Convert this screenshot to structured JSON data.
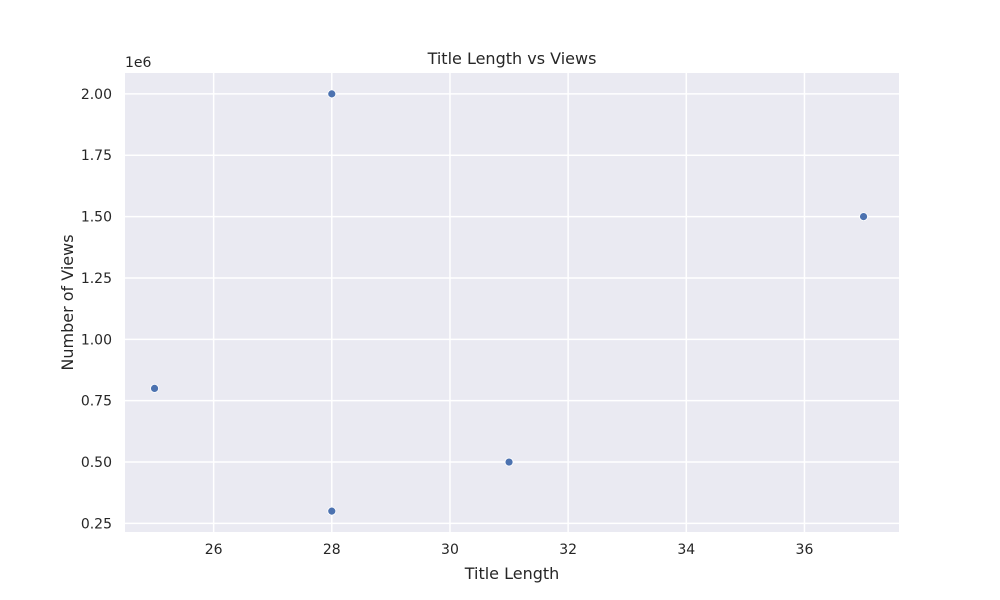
{
  "chart_data": {
    "type": "scatter",
    "title": "Title Length vs Views",
    "xlabel": "Title Length",
    "ylabel": "Number of Views",
    "y_offset_label": "1e6",
    "xlim": [
      24.5,
      37.6
    ],
    "ylim": [
      0.215,
      2.085
    ],
    "x_ticks": [
      26,
      28,
      30,
      32,
      34,
      36
    ],
    "y_ticks": [
      0.25,
      0.5,
      0.75,
      1.0,
      1.25,
      1.5,
      1.75,
      2.0
    ],
    "x_tick_labels": [
      "26",
      "28",
      "30",
      "32",
      "34",
      "36"
    ],
    "y_tick_labels": [
      "0.25",
      "0.50",
      "0.75",
      "1.00",
      "1.25",
      "1.50",
      "1.75",
      "2.00"
    ],
    "grid": true,
    "points": [
      {
        "x": 25,
        "y": 0.8
      },
      {
        "x": 28,
        "y": 2.0
      },
      {
        "x": 28,
        "y": 0.3
      },
      {
        "x": 31,
        "y": 0.5
      },
      {
        "x": 37,
        "y": 1.5
      }
    ],
    "colors": {
      "plot_bg": "#eaeaf2",
      "grid": "#ffffff",
      "point": "#4c72b0",
      "text": "#262626"
    }
  }
}
